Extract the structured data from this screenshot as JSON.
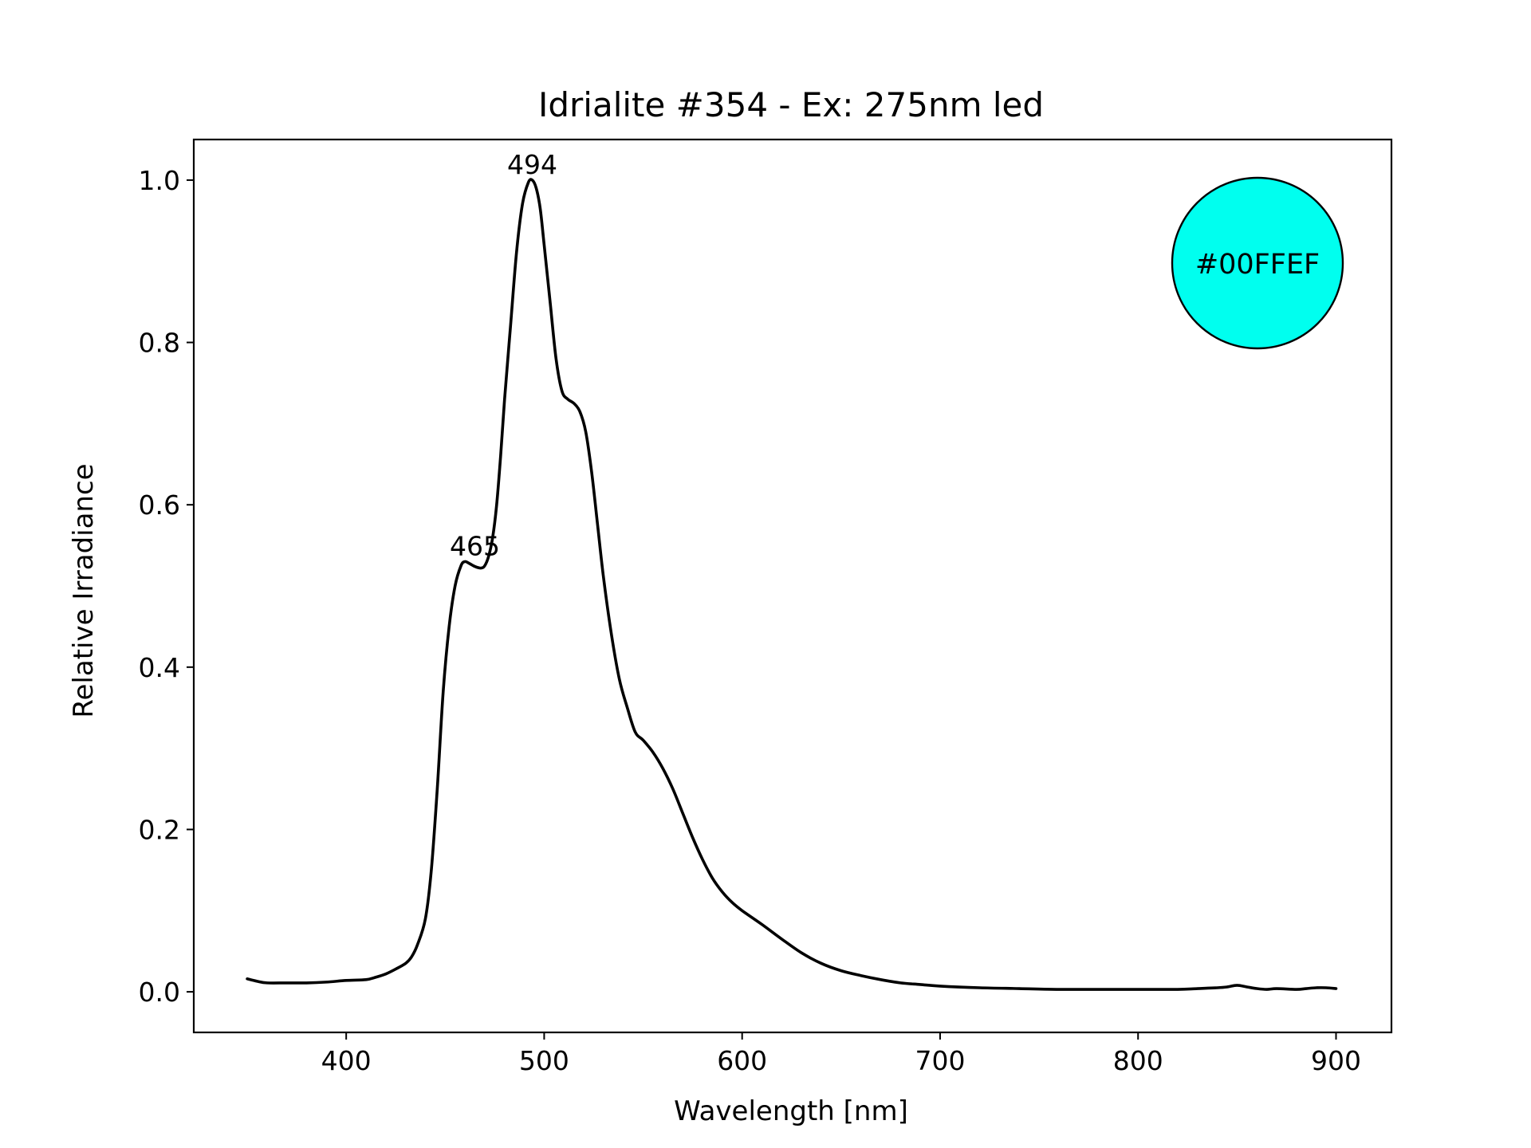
{
  "chart_data": {
    "type": "line",
    "title": "Idrialite #354 - Ex: 275nm led",
    "xlabel": "Wavelength [nm]",
    "ylabel": "Relative Irradiance",
    "xlim": [
      323,
      928
    ],
    "ylim": [
      -0.05,
      1.05
    ],
    "xticks": [
      400,
      500,
      600,
      700,
      800,
      900
    ],
    "xtick_labels": [
      "400",
      "500",
      "600",
      "700",
      "800",
      "900"
    ],
    "yticks": [
      0.0,
      0.2,
      0.4,
      0.6,
      0.8,
      1.0
    ],
    "ytick_labels": [
      "0.0",
      "0.2",
      "0.4",
      "0.6",
      "0.8",
      "1.0"
    ],
    "grid": false,
    "line_color": "#000000",
    "series": [
      {
        "x": [
          350,
          355,
          360,
          370,
          380,
          390,
          400,
          410,
          415,
          420,
          425,
          430,
          433,
          436,
          440,
          443,
          446,
          449,
          452,
          455,
          458,
          460,
          462,
          465,
          468,
          470,
          472,
          474,
          476,
          478,
          480,
          483,
          486,
          489,
          492,
          494,
          496,
          498,
          500,
          503,
          506,
          509,
          512,
          515,
          518,
          521,
          524,
          527,
          530,
          534,
          538,
          542,
          546,
          550,
          555,
          560,
          565,
          570,
          575,
          580,
          585,
          590,
          595,
          600,
          610,
          620,
          630,
          640,
          650,
          660,
          670,
          680,
          690,
          700,
          720,
          740,
          760,
          780,
          800,
          820,
          830,
          840,
          845,
          850,
          855,
          860,
          865,
          870,
          880,
          885,
          890,
          895,
          900
        ],
        "y": [
          0.016,
          0.013,
          0.011,
          0.011,
          0.011,
          0.012,
          0.014,
          0.015,
          0.018,
          0.022,
          0.028,
          0.035,
          0.043,
          0.058,
          0.09,
          0.15,
          0.25,
          0.37,
          0.45,
          0.5,
          0.525,
          0.53,
          0.528,
          0.524,
          0.522,
          0.525,
          0.537,
          0.56,
          0.6,
          0.66,
          0.73,
          0.82,
          0.91,
          0.97,
          0.997,
          1.0,
          0.99,
          0.965,
          0.92,
          0.85,
          0.78,
          0.74,
          0.73,
          0.725,
          0.715,
          0.69,
          0.64,
          0.575,
          0.51,
          0.44,
          0.385,
          0.35,
          0.32,
          0.31,
          0.295,
          0.275,
          0.25,
          0.22,
          0.19,
          0.163,
          0.14,
          0.123,
          0.11,
          0.1,
          0.083,
          0.065,
          0.048,
          0.035,
          0.026,
          0.02,
          0.015,
          0.011,
          0.009,
          0.007,
          0.005,
          0.004,
          0.003,
          0.003,
          0.003,
          0.003,
          0.004,
          0.005,
          0.006,
          0.008,
          0.006,
          0.004,
          0.003,
          0.004,
          0.003,
          0.004,
          0.005,
          0.005,
          0.004
        ]
      }
    ],
    "annotations": [
      {
        "label": "494",
        "x": 494,
        "y": 1.0
      },
      {
        "label": "465",
        "x": 465,
        "y": 0.53
      }
    ],
    "color_swatch": {
      "label": "#00FFEF",
      "fill": "#00FFEF",
      "stroke": "#000000",
      "position": "top-right"
    }
  }
}
